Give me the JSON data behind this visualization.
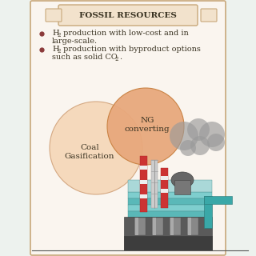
{
  "title": "FOSSIL RESOURCES",
  "circle1_label": "Coal\nGasification",
  "circle2_label": "NG\nconverting",
  "panel_bg": "#faf5ef",
  "title_box_color": "#f2e2cc",
  "circle1_color": "#f5d9bc",
  "circle2_color": "#e8a87c",
  "circle1_edge": "#d4a882",
  "circle2_edge": "#c88040",
  "bullet_color": "#8b3a3a",
  "text_color": "#3a3322",
  "border_color": "#c8a87a",
  "side_bg": "#edf2ee",
  "smoke_color": "#9a9a9a",
  "chimney_red": "#cc3333",
  "chimney_gray": "#cccccc",
  "teal_light": "#7ecece",
  "teal_dark": "#5ab8b8",
  "teal_pipe": "#3aA8A8",
  "dark_base": "#555555",
  "dark_gray": "#666666",
  "building_gray": "#888888",
  "black": "#333333"
}
